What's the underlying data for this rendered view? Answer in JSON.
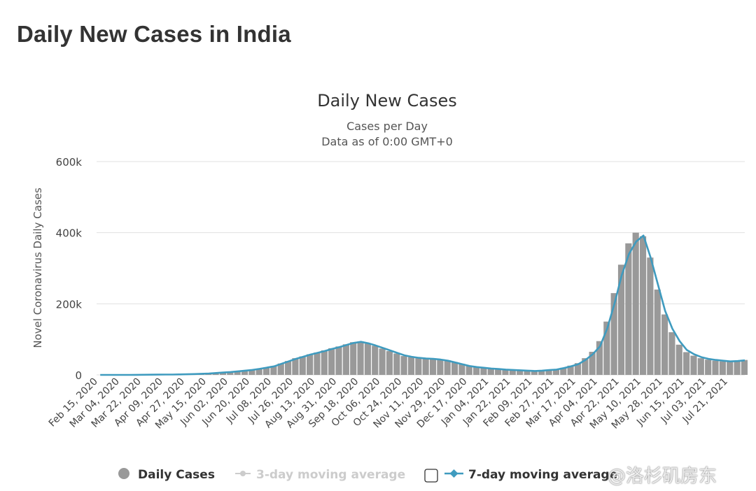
{
  "page_title": "Daily New Cases in India",
  "watermark": "@洛杉矶房东",
  "colors": {
    "bars": "#999999",
    "avg7": "#3f9bbf",
    "avg3": "#cccccc",
    "grid": "#e0e0e0",
    "text": "#333333"
  },
  "chart_data": {
    "type": "bar",
    "title": "Daily New Cases",
    "subtitle_lines": [
      "Cases per Day",
      "Data as of 0:00 GMT+0"
    ],
    "ylabel": "Novel Coronavirus Daily Cases",
    "xlabel": "",
    "ylim": [
      0,
      600000
    ],
    "y_ticks": [
      0,
      200000,
      400000,
      600000
    ],
    "y_tick_labels": [
      "0",
      "200k",
      "400k",
      "600k"
    ],
    "grid": true,
    "x_start_date": "2020-02-15",
    "x_range_days": [
      0,
      537
    ],
    "x_step_days": 6,
    "x_tick_step_days": 18,
    "x_tick_labels": [
      "Feb 15, 2020",
      "Mar 04, 2020",
      "Mar 22, 2020",
      "Apr 09, 2020",
      "Apr 27, 2020",
      "May 15, 2020",
      "Jun 02, 2020",
      "Jun 20, 2020",
      "Jul 08, 2020",
      "Jul 26, 2020",
      "Aug 13, 2020",
      "Aug 31, 2020",
      "Sep 18, 2020",
      "Oct 06, 2020",
      "Oct 24, 2020",
      "Nov 11, 2020",
      "Nov 29, 2020",
      "Dec 17, 2020",
      "Jan 04, 2021",
      "Jan 22, 2021",
      "Feb 09, 2021",
      "Feb 27, 2021",
      "Mar 17, 2021",
      "Apr 04, 2021",
      "Apr 22, 2021",
      "May 10, 2021",
      "May 28, 2021",
      "Jun 15, 2021",
      "Jul 03, 2021",
      "Jul 21, 2021"
    ],
    "series": [
      {
        "name": "Daily Cases",
        "type": "bar",
        "unit": "thousands",
        "values": [
          0,
          0,
          0,
          0,
          0,
          0.1,
          0.3,
          0.5,
          0.7,
          0.9,
          1,
          1.4,
          1.9,
          2.5,
          3.3,
          4.1,
          5.5,
          6.9,
          8.3,
          10.3,
          12.3,
          14.5,
          17.5,
          21,
          25,
          32,
          39,
          47,
          52,
          58,
          63,
          69,
          75,
          80,
          86,
          92,
          94,
          88,
          82,
          74,
          67,
          60,
          53,
          50,
          47,
          46,
          45,
          44,
          41,
          36,
          31,
          26,
          23,
          20,
          18.5,
          16.5,
          15,
          14,
          13,
          12,
          11.5,
          12.5,
          14,
          16,
          20,
          26,
          33,
          47,
          65,
          95,
          150,
          230,
          310,
          370,
          400,
          390,
          330,
          240,
          170,
          120,
          85,
          64,
          54,
          47,
          43,
          40,
          38,
          37,
          40,
          42
        ]
      },
      {
        "name": "7-day moving average",
        "type": "line",
        "unit": "thousands",
        "values": [
          0,
          0,
          0,
          0,
          0,
          0.1,
          0.3,
          0.5,
          0.7,
          0.9,
          1,
          1.4,
          1.8,
          2.4,
          3.2,
          4,
          5.3,
          6.7,
          8,
          10,
          12,
          14,
          17,
          20.5,
          24,
          31,
          38,
          45,
          51,
          57,
          62,
          67,
          73,
          78,
          84,
          90,
          93,
          89,
          83,
          76,
          69,
          62,
          55,
          51,
          48,
          46,
          45,
          43,
          40,
          35,
          30,
          25,
          22,
          20,
          18,
          16.5,
          15,
          14,
          13,
          12,
          11,
          12,
          13.5,
          15,
          19,
          24,
          30,
          42,
          58,
          80,
          130,
          200,
          280,
          340,
          375,
          392,
          330,
          255,
          180,
          130,
          95,
          70,
          58,
          50,
          45,
          42,
          40,
          38,
          39,
          41
        ]
      }
    ],
    "legend": {
      "placement": "bottom-center",
      "items": [
        {
          "label": "Daily Cases",
          "enabled": true
        },
        {
          "label": "3-day moving average",
          "enabled": false
        },
        {
          "label": "7-day moving average",
          "enabled": true
        }
      ]
    }
  }
}
